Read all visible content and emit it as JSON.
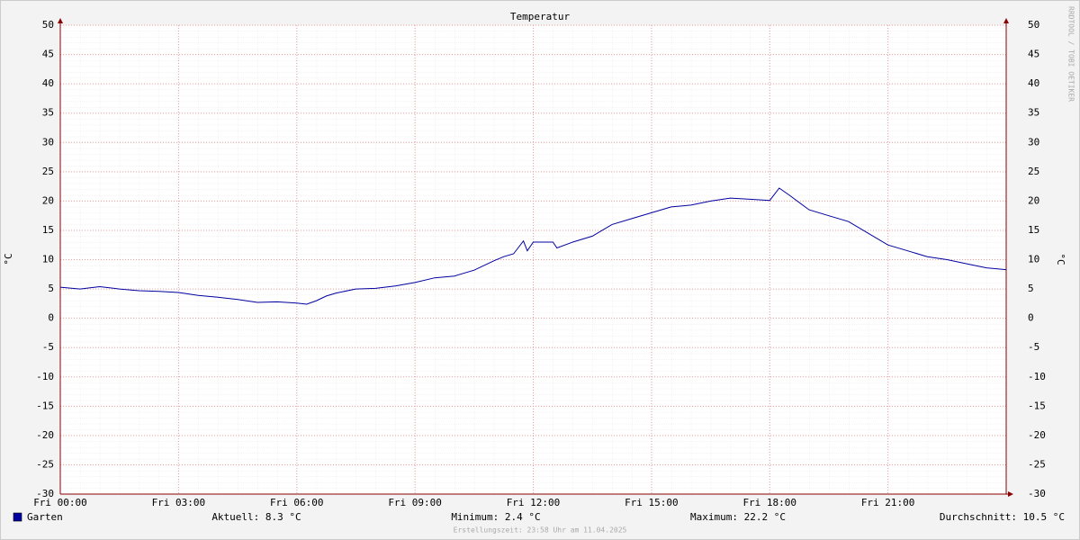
{
  "chart_data": {
    "type": "line",
    "title": "Temperatur",
    "y_label": "°C",
    "watermark": "RRDTOOL / TOBI OETIKER",
    "footer": "Erstellungszeit: 23:58 Uhr am 11.04.2025",
    "xlim": [
      0,
      24
    ],
    "xticks": [
      {
        "value": 0,
        "label": "Fri 00:00"
      },
      {
        "value": 3,
        "label": "Fri 03:00"
      },
      {
        "value": 6,
        "label": "Fri 06:00"
      },
      {
        "value": 9,
        "label": "Fri 09:00"
      },
      {
        "value": 12,
        "label": "Fri 12:00"
      },
      {
        "value": 15,
        "label": "Fri 15:00"
      },
      {
        "value": 18,
        "label": "Fri 18:00"
      },
      {
        "value": 21,
        "label": "Fri 21:00"
      }
    ],
    "ylim": [
      -30,
      50
    ],
    "yticks": [
      -30,
      -25,
      -20,
      -15,
      -10,
      -5,
      0,
      5,
      10,
      15,
      20,
      25,
      30,
      35,
      40,
      45,
      50
    ],
    "grid": true,
    "x": [
      0,
      0.5,
      1,
      1.5,
      2,
      2.5,
      3,
      3.5,
      4,
      4.5,
      5,
      5.5,
      6,
      6.25,
      6.5,
      6.75,
      7,
      7.5,
      8,
      8.5,
      9,
      9.5,
      10,
      10.5,
      11,
      11.25,
      11.5,
      11.75,
      11.85,
      12,
      12.5,
      12.6,
      13,
      13.5,
      14,
      14.5,
      15,
      15.5,
      16,
      16.5,
      17,
      17.5,
      18,
      18.24,
      18.5,
      19,
      19.5,
      20,
      20.5,
      21,
      21.5,
      22,
      22.5,
      23,
      23.5,
      24
    ],
    "series": [
      {
        "name": "Garten",
        "color": "#0000a0",
        "values": [
          5.3,
          5.0,
          5.4,
          5.0,
          4.7,
          4.6,
          4.4,
          3.9,
          3.6,
          3.2,
          2.7,
          2.8,
          2.6,
          2.4,
          3.0,
          3.8,
          4.3,
          5.0,
          5.1,
          5.5,
          6.1,
          6.9,
          7.2,
          8.2,
          9.8,
          10.5,
          11.0,
          13.2,
          11.5,
          13.0,
          13.0,
          12.0,
          13.0,
          14.0,
          16.0,
          17.0,
          18.0,
          19.0,
          19.3,
          20.0,
          20.5,
          20.3,
          20.1,
          22.2,
          21.0,
          18.5,
          17.5,
          16.5,
          14.5,
          12.5,
          11.5,
          10.5,
          10.0,
          9.3,
          8.6,
          8.3
        ]
      }
    ],
    "stats": [
      {
        "label": "Aktuell:",
        "value": 8.3,
        "unit": "°C"
      },
      {
        "label": "Minimum:",
        "value": 2.4,
        "unit": "°C"
      },
      {
        "label": "Maximum:",
        "value": 22.2,
        "unit": "°C"
      },
      {
        "label": "Durchschnitt:",
        "value": 10.5,
        "unit": "°C"
      }
    ]
  }
}
